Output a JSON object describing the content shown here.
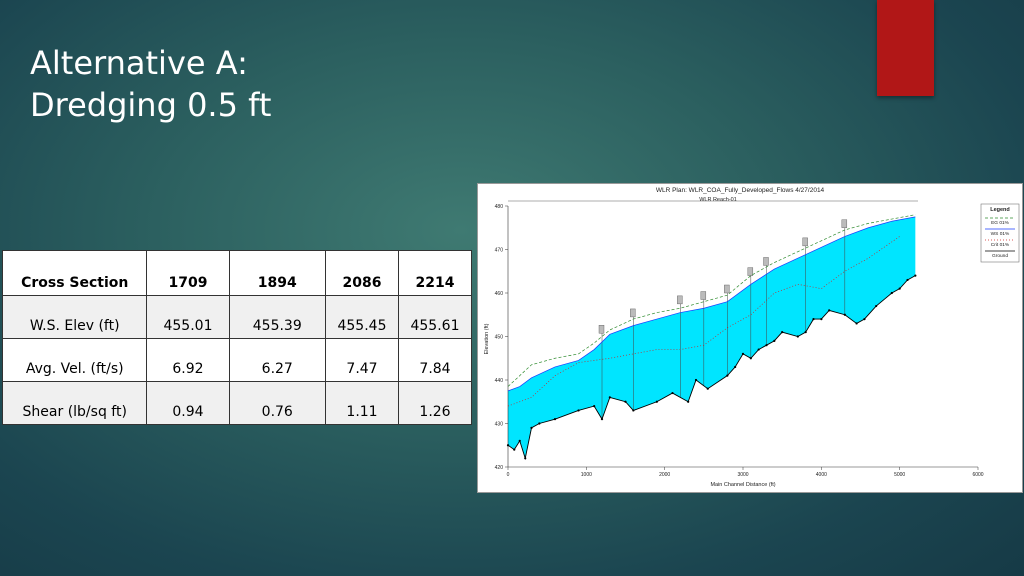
{
  "slide": {
    "title_line1": "Alternative A:",
    "title_line2": "Dredging 0.5 ft",
    "accent_color": "#b11717"
  },
  "table": {
    "headers": [
      "Cross Section",
      "1709",
      "1894",
      "2086",
      "2214"
    ],
    "rows": [
      [
        "W.S. Elev (ft)",
        "455.01",
        "455.39",
        "455.45",
        "455.61"
      ],
      [
        "Avg. Vel. (ft/s)",
        "6.92",
        "6.27",
        "7.47",
        "7.84"
      ],
      [
        "Shear (lb/sq ft)",
        "0.94",
        "0.76",
        "1.11",
        "1.26"
      ]
    ]
  },
  "chart_data": {
    "type": "area",
    "title": "WLR      Plan: WLR_COA_Fully_Developed_Flows      4/27/2014",
    "subtitle": "WLR Reach-01",
    "xlabel": "Main Channel Distance (ft)",
    "ylabel": "Elevation (ft)",
    "xlim": [
      0,
      6000
    ],
    "ylim": [
      420,
      480
    ],
    "x_ticks": [
      0,
      1000,
      2000,
      3000,
      4000,
      5000,
      6000
    ],
    "y_ticks": [
      420,
      430,
      440,
      450,
      460,
      470,
      480
    ],
    "legend_title": "Legend",
    "legend_position": "right",
    "fill_color": "#00e5ff",
    "series": [
      {
        "name": "EG 01%",
        "color": "#2e8b2e",
        "x": [
          0,
          150,
          300,
          600,
          900,
          1100,
          1300,
          1600,
          1900,
          2200,
          2500,
          2800,
          3100,
          3400,
          3700,
          4000,
          4300,
          4600,
          4900,
          5200
        ],
        "y": [
          438.5,
          441,
          443.5,
          445,
          446,
          448.5,
          451.5,
          454,
          455.5,
          456.5,
          458,
          459.5,
          464,
          467,
          469.5,
          472,
          474.5,
          476,
          477,
          478
        ]
      },
      {
        "name": "WS 01%",
        "color": "#1a3cff",
        "x": [
          0,
          150,
          300,
          600,
          900,
          1100,
          1300,
          1600,
          1900,
          2200,
          2500,
          2800,
          3100,
          3400,
          3700,
          4000,
          4300,
          4600,
          4900,
          5200
        ],
        "y": [
          437.5,
          438.5,
          440.5,
          443,
          444.5,
          447,
          450.5,
          452.5,
          454,
          455.5,
          456.5,
          458,
          462,
          465.5,
          468,
          470.5,
          473,
          475,
          476.5,
          477.5
        ]
      },
      {
        "name": "Crit 01%",
        "color": "#cc2222",
        "x": [
          0,
          300,
          600,
          900,
          1300,
          1600,
          1900,
          2200,
          2500,
          2800,
          3100,
          3400,
          3700,
          4000,
          4300,
          4600,
          5000
        ],
        "y": [
          434,
          436,
          441,
          444,
          445,
          446,
          447,
          447,
          448,
          452,
          455,
          460,
          462,
          461,
          465,
          468,
          473
        ]
      },
      {
        "name": "Ground",
        "color": "#000000",
        "x": [
          0,
          80,
          150,
          220,
          300,
          400,
          600,
          900,
          1100,
          1200,
          1300,
          1500,
          1600,
          1900,
          2100,
          2300,
          2400,
          2550,
          2800,
          2900,
          3000,
          3100,
          3200,
          3300,
          3400,
          3500,
          3700,
          3800,
          3900,
          4000,
          4100,
          4300,
          4450,
          4550,
          4700,
          4900,
          5000,
          5100,
          5200
        ],
        "y": [
          425,
          424,
          426,
          422,
          429,
          430,
          431,
          433,
          434,
          431,
          436,
          435,
          433,
          435,
          437,
          435,
          440,
          438,
          441,
          443,
          446,
          445,
          447,
          448,
          449,
          451,
          450,
          451,
          454,
          454,
          456,
          455,
          453,
          454,
          457,
          460,
          461,
          463,
          464
        ]
      }
    ]
  }
}
